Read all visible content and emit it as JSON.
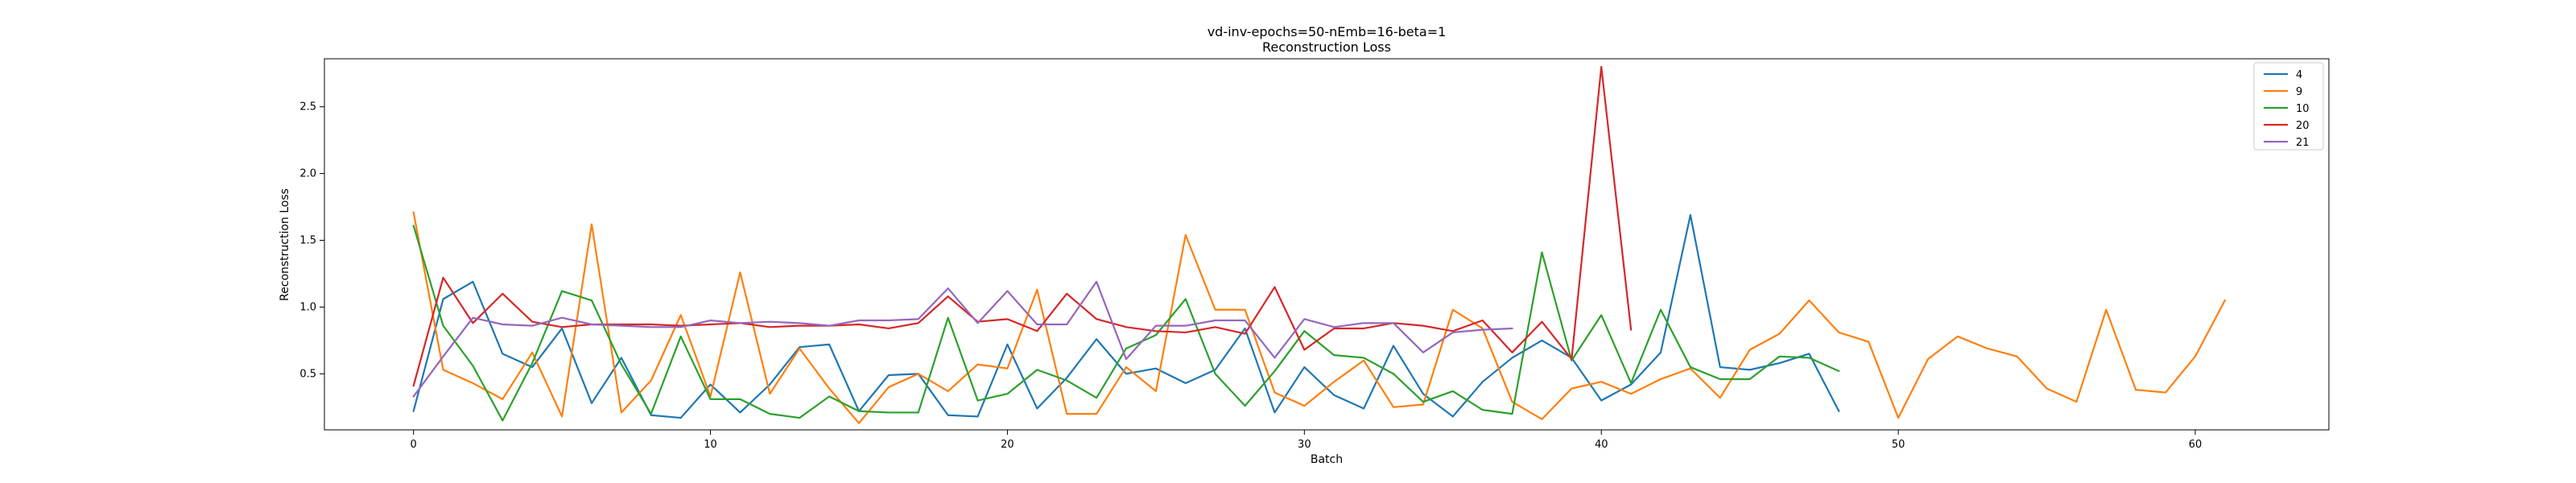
{
  "chart_data": {
    "type": "line",
    "title": "vd-inv-epochs=50-nEmb=16-beta=1",
    "subtitle": "Reconstruction Loss",
    "xlabel": "Batch",
    "ylabel": "Reconstruction Loss",
    "xlim": [
      -3,
      64.5
    ],
    "ylim": [
      0.08,
      2.86
    ],
    "xticks": [
      0,
      10,
      20,
      30,
      40,
      50,
      60
    ],
    "yticks": [
      0.5,
      1.0,
      1.5,
      2.0,
      2.5
    ],
    "xtick_labels": [
      "0",
      "10",
      "20",
      "30",
      "40",
      "50",
      "60"
    ],
    "ytick_labels": [
      "0.5",
      "1.0",
      "1.5",
      "2.0",
      "2.5"
    ],
    "grid": false,
    "legend_position": "top-right",
    "series": [
      {
        "name": "4",
        "color": "#1f77b4",
        "values": [
          0.22,
          1.06,
          1.19,
          0.65,
          0.55,
          0.84,
          0.28,
          0.62,
          0.19,
          0.17,
          0.42,
          0.21,
          0.42,
          0.7,
          0.72,
          0.22,
          0.49,
          0.5,
          0.19,
          0.18,
          0.72,
          0.24,
          0.47,
          0.76,
          0.5,
          0.54,
          0.43,
          0.53,
          0.84,
          0.21,
          0.55,
          0.34,
          0.24,
          0.71,
          0.35,
          0.18,
          0.44,
          0.62,
          0.75,
          0.62,
          0.3,
          0.42,
          0.66,
          1.69,
          0.55,
          0.53,
          0.58,
          0.65,
          0.22
        ]
      },
      {
        "name": "9",
        "color": "#ff7f0e",
        "values": [
          1.71,
          0.53,
          0.43,
          0.31,
          0.66,
          0.18,
          1.62,
          0.21,
          0.45,
          0.94,
          0.33,
          1.26,
          0.35,
          0.69,
          0.39,
          0.13,
          0.4,
          0.5,
          0.37,
          0.57,
          0.54,
          1.13,
          0.2,
          0.2,
          0.55,
          0.37,
          1.54,
          0.98,
          0.98,
          0.36,
          0.26,
          0.44,
          0.6,
          0.25,
          0.27,
          0.98,
          0.84,
          0.29,
          0.16,
          0.39,
          0.44,
          0.35,
          0.46,
          0.54,
          0.32,
          0.68,
          0.8,
          1.05,
          0.81,
          0.74,
          0.17,
          0.61,
          0.78,
          0.69,
          0.63,
          0.39,
          0.29,
          0.98,
          0.38,
          0.36,
          0.63,
          1.05
        ]
      },
      {
        "name": "10",
        "color": "#2ca02c",
        "values": [
          1.61,
          0.86,
          0.56,
          0.15,
          0.58,
          1.12,
          1.05,
          0.57,
          0.2,
          0.78,
          0.31,
          0.31,
          0.2,
          0.17,
          0.33,
          0.22,
          0.21,
          0.21,
          0.92,
          0.3,
          0.35,
          0.53,
          0.45,
          0.32,
          0.69,
          0.79,
          1.06,
          0.5,
          0.26,
          0.52,
          0.82,
          0.64,
          0.62,
          0.5,
          0.29,
          0.37,
          0.23,
          0.2,
          1.41,
          0.6,
          0.94,
          0.43,
          0.98,
          0.55,
          0.46,
          0.46,
          0.63,
          0.62,
          0.52
        ]
      },
      {
        "name": "20",
        "color": "#d62728",
        "values": [
          0.41,
          1.22,
          0.88,
          1.1,
          0.89,
          0.85,
          0.87,
          0.87,
          0.87,
          0.86,
          0.87,
          0.88,
          0.85,
          0.86,
          0.86,
          0.87,
          0.84,
          0.88,
          1.08,
          0.89,
          0.91,
          0.82,
          1.1,
          0.91,
          0.85,
          0.82,
          0.81,
          0.85,
          0.8,
          1.15,
          0.68,
          0.84,
          0.84,
          0.88,
          0.86,
          0.82,
          0.9,
          0.66,
          0.89,
          0.61,
          2.8,
          0.83
        ]
      },
      {
        "name": "21",
        "color": "#9467bd",
        "values": [
          0.33,
          0.63,
          0.92,
          0.87,
          0.86,
          0.92,
          0.87,
          0.86,
          0.85,
          0.85,
          0.9,
          0.88,
          0.89,
          0.88,
          0.86,
          0.9,
          0.9,
          0.91,
          1.14,
          0.88,
          1.12,
          0.87,
          0.87,
          1.19,
          0.61,
          0.86,
          0.86,
          0.9,
          0.9,
          0.62,
          0.91,
          0.85,
          0.88,
          0.88,
          0.66,
          0.81,
          0.83,
          0.84
        ]
      }
    ]
  }
}
